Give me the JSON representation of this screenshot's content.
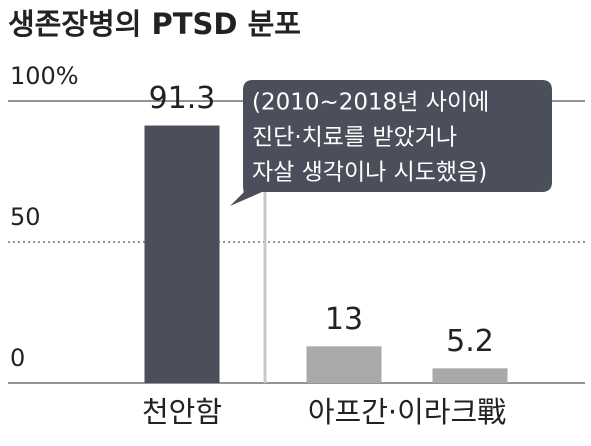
{
  "chart_data": {
    "type": "bar",
    "title": "생존장병의 PTSD 분포",
    "categories": [
      "천안함",
      "아프간·이라크戰",
      null
    ],
    "values": [
      91.3,
      13,
      5.2
    ],
    "colors": [
      "#4b4e5b",
      "#a9a9a9",
      "#a9a9a9"
    ],
    "ylim": [
      0,
      100
    ],
    "yticks": [
      0,
      50,
      {
        "value": 100,
        "label": "100%"
      }
    ],
    "grid": true,
    "annotation": [
      "(2010~2018년 사이에",
      "진단·치료를 받았거나",
      "자살 생각이나 시도했음)"
    ]
  }
}
